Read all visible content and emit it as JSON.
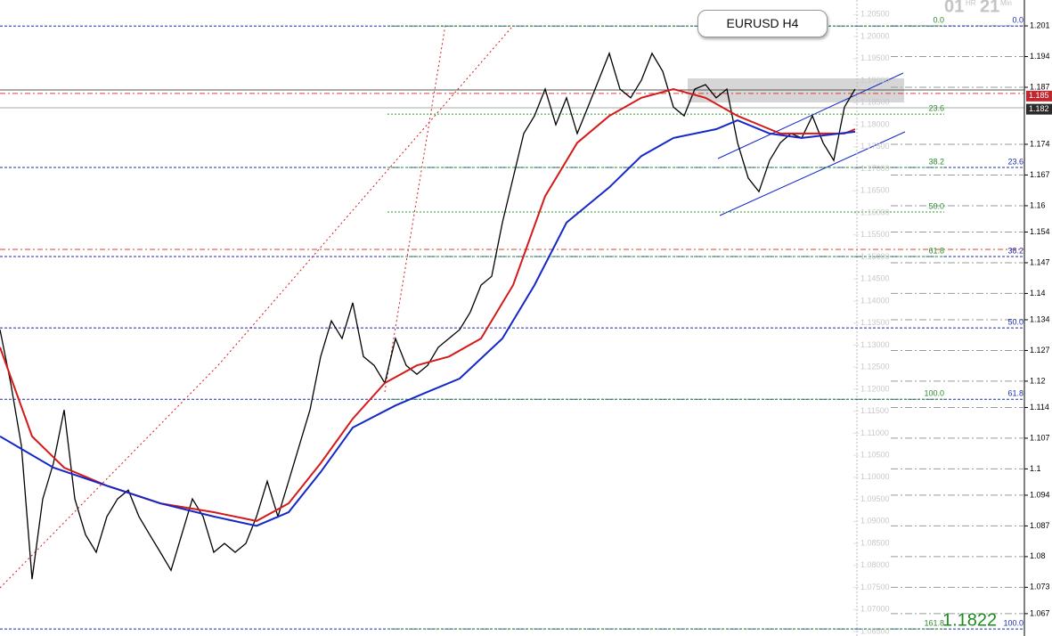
{
  "chart_data": {
    "type": "line",
    "title": "EURUSD H4",
    "countdown": {
      "hours": "01",
      "hours_unit": "HR",
      "minutes": "21",
      "minutes_unit": "Min"
    },
    "price_display": 1.1822,
    "xlim": [
      0,
      80
    ],
    "ylim": [
      1.064,
      1.2083
    ],
    "y2lim": [
      1.0619,
      1.2069
    ],
    "yticks": [
      {
        "value": 1.205,
        "label": "1.20500"
      },
      {
        "value": 1.2,
        "label": "1.20000"
      },
      {
        "value": 1.195,
        "label": "1.19500"
      },
      {
        "value": 1.19,
        "label": "1.19000"
      },
      {
        "value": 1.185,
        "label": "1.18500"
      },
      {
        "value": 1.18,
        "label": "1.18000"
      },
      {
        "value": 1.175,
        "label": "1.17500"
      },
      {
        "value": 1.17,
        "label": "1.17000"
      },
      {
        "value": 1.165,
        "label": "1.16500"
      },
      {
        "value": 1.16,
        "label": "1.16000"
      },
      {
        "value": 1.155,
        "label": "1.15500"
      },
      {
        "value": 1.15,
        "label": "1.15000"
      },
      {
        "value": 1.145,
        "label": "1.14500"
      },
      {
        "value": 1.14,
        "label": "1.14000"
      },
      {
        "value": 1.135,
        "label": "1.13500"
      },
      {
        "value": 1.13,
        "label": "1.13000"
      },
      {
        "value": 1.125,
        "label": "1.12500"
      },
      {
        "value": 1.12,
        "label": "1.12000"
      },
      {
        "value": 1.115,
        "label": "1.11500"
      },
      {
        "value": 1.11,
        "label": "1.11000"
      },
      {
        "value": 1.105,
        "label": "1.10500"
      },
      {
        "value": 1.1,
        "label": "1.10000"
      },
      {
        "value": 1.095,
        "label": "1.09500"
      },
      {
        "value": 1.09,
        "label": "1.09000"
      },
      {
        "value": 1.085,
        "label": "1.08500"
      },
      {
        "value": 1.08,
        "label": "1.08000"
      },
      {
        "value": 1.075,
        "label": "1.07500"
      },
      {
        "value": 1.07,
        "label": "1.07000"
      },
      {
        "value": 1.065,
        "label": "1.06500"
      }
    ],
    "y2ticks": [
      1.201,
      1.194,
      1.187,
      1.174,
      1.167,
      1.16,
      1.154,
      1.147,
      1.14,
      1.134,
      1.127,
      1.12,
      1.114,
      1.107,
      1.1,
      1.094,
      1.087,
      1.08,
      1.073,
      1.067
    ],
    "price_markers": [
      {
        "value": 1.185,
        "color": "#c0262d"
      },
      {
        "value": 1.182,
        "color": "#2b2b2b"
      }
    ],
    "hlines": [
      {
        "value": 1.2024,
        "color": "#1a2fa8"
      },
      {
        "value": 1.1703,
        "color": "#1a2fa8"
      },
      {
        "value": 1.1501,
        "color": "#1a2fa8"
      },
      {
        "value": 1.1339,
        "color": "#1a2fa8"
      },
      {
        "value": 1.1177,
        "color": "#1a2fa8"
      },
      {
        "value": 1.0656,
        "color": "#1a2fa8"
      },
      {
        "value": 1.1871,
        "color": "#d9432b"
      },
      {
        "value": 1.1517,
        "color": "#d9432b"
      }
    ],
    "fib_green": [
      {
        "label": "0.0",
        "value": 1.2024
      },
      {
        "label": "23.6",
        "value": 1.1824
      },
      {
        "label": "38.2",
        "value": 1.1703
      },
      {
        "label": "50.0",
        "value": 1.1602
      },
      {
        "label": "61.8",
        "value": 1.1501
      },
      {
        "label": "100.0",
        "value": 1.1177
      },
      {
        "label": "161.8",
        "value": 1.0656
      }
    ],
    "fib_blue": [
      {
        "label": "0.0",
        "value": 1.2024
      },
      {
        "label": "23.6",
        "value": 1.1703
      },
      {
        "label": "38.2",
        "value": 1.1501
      },
      {
        "label": "50.0",
        "value": 1.1339
      },
      {
        "label": "61.8",
        "value": 1.1177
      },
      {
        "label": "100.0",
        "value": 1.0656
      }
    ],
    "series": [
      {
        "color": "#000000",
        "x": [
          0,
          1,
          2,
          3,
          4,
          5,
          6,
          7,
          8,
          9,
          10,
          11,
          12,
          13,
          14,
          15,
          16,
          17,
          18,
          19,
          20,
          21,
          22,
          23,
          24,
          25,
          26,
          27,
          28,
          29,
          30,
          31,
          32,
          33,
          34,
          35,
          36,
          37,
          38,
          39,
          40,
          41,
          42,
          43,
          44,
          45,
          46,
          47,
          48,
          49,
          50,
          51,
          52,
          53,
          54,
          55,
          56,
          57,
          58,
          59,
          60,
          61,
          62,
          63,
          64,
          65,
          66,
          67,
          68,
          69,
          70,
          71,
          72,
          73,
          74,
          75,
          76,
          77,
          78,
          79,
          80
        ],
        "values": [
          1.1335,
          1.1214,
          1.1072,
          1.0769,
          1.0951,
          1.1032,
          1.1153,
          1.0951,
          1.087,
          1.083,
          1.0911,
          1.0951,
          1.0971,
          1.0911,
          1.087,
          1.083,
          1.0789,
          1.087,
          1.0951,
          1.0911,
          1.083,
          1.085,
          1.083,
          1.085,
          1.0911,
          1.0991,
          1.0911,
          1.0991,
          1.1072,
          1.1153,
          1.1274,
          1.1355,
          1.1315,
          1.1396,
          1.1274,
          1.1254,
          1.1214,
          1.1315,
          1.1254,
          1.1234,
          1.1254,
          1.1295,
          1.1315,
          1.1335,
          1.1375,
          1.1436,
          1.1456,
          1.1578,
          1.1679,
          1.178,
          1.182,
          1.1881,
          1.18,
          1.1861,
          1.178,
          1.184,
          1.1901,
          1.1962,
          1.1881,
          1.1861,
          1.1901,
          1.1962,
          1.1921,
          1.184,
          1.182,
          1.1881,
          1.1891,
          1.1861,
          1.1881,
          1.1759,
          1.1679,
          1.1648,
          1.1719,
          1.1759,
          1.178,
          1.177,
          1.182,
          1.1759,
          1.1719,
          1.184,
          1.1881
        ]
      },
      {
        "color": "#d41a1a",
        "x": [
          0,
          3,
          6,
          10,
          15,
          20,
          24,
          27,
          30,
          33,
          36,
          39,
          42,
          45,
          48,
          51,
          54,
          57,
          60,
          63,
          66,
          69,
          71,
          73,
          76,
          79,
          80
        ],
        "values": [
          1.1295,
          1.1093,
          1.1022,
          1.0981,
          1.0941,
          1.0921,
          1.0901,
          1.0941,
          1.1032,
          1.1133,
          1.1214,
          1.1254,
          1.1274,
          1.1315,
          1.1436,
          1.1638,
          1.1759,
          1.182,
          1.1861,
          1.1881,
          1.1861,
          1.182,
          1.18,
          1.178,
          1.178,
          1.178,
          1.179
        ]
      },
      {
        "color": "#1428c8",
        "x": [
          0,
          5,
          10,
          15,
          20,
          24,
          27,
          30,
          33,
          37,
          40,
          43,
          47,
          50,
          53,
          57,
          60,
          63,
          67,
          69,
          72,
          75,
          80
        ],
        "values": [
          1.1093,
          1.1022,
          1.0981,
          1.0941,
          1.0911,
          1.089,
          1.0921,
          1.1012,
          1.1113,
          1.1163,
          1.1194,
          1.1224,
          1.1315,
          1.1436,
          1.1578,
          1.1658,
          1.1729,
          1.177,
          1.179,
          1.181,
          1.178,
          1.177,
          1.1784
        ]
      }
    ]
  }
}
